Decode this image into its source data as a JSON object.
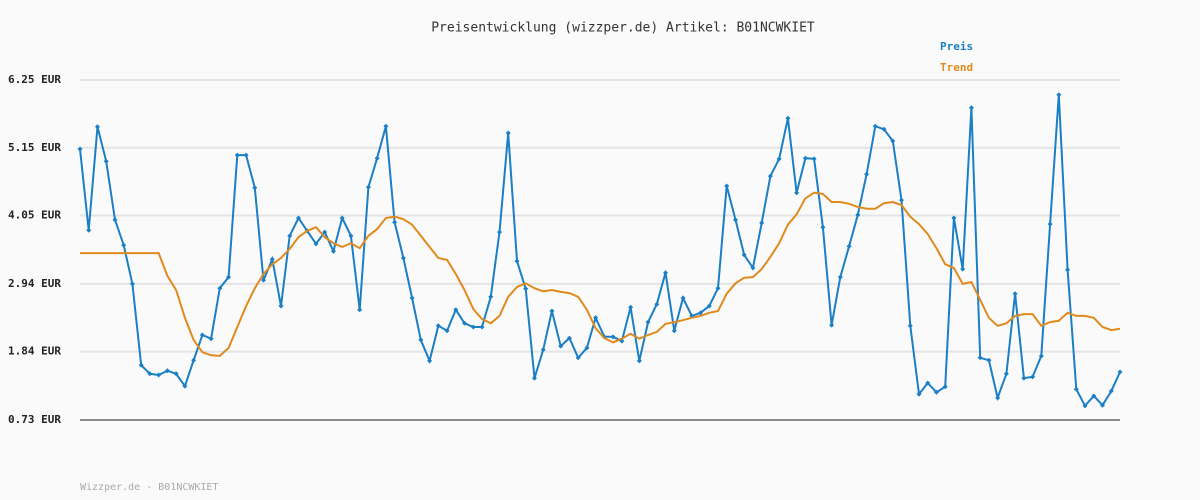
{
  "chart_data": {
    "type": "line",
    "title": "Preisentwicklung (wizzper.de) Artikel: B01NCWKIET",
    "footer": "Wizzper.de - B01NCWKIET",
    "ylim": [
      0.73,
      6.25
    ],
    "yticks": [
      {
        "value": 0.73,
        "label": "0.73 EUR"
      },
      {
        "value": 1.84,
        "label": "1.84 EUR"
      },
      {
        "value": 2.94,
        "label": "2.94 EUR"
      },
      {
        "value": 4.05,
        "label": "4.05 EUR"
      },
      {
        "value": 5.15,
        "label": "5.15 EUR"
      },
      {
        "value": 6.25,
        "label": "6.25 EUR"
      }
    ],
    "grid": true,
    "legend": "top-right",
    "series": [
      {
        "name": "Preis",
        "color": "#1a7fc4",
        "markers": true,
        "values": [
          5.13,
          3.81,
          5.49,
          4.93,
          3.98,
          3.57,
          2.94,
          1.62,
          1.48,
          1.46,
          1.53,
          1.48,
          1.28,
          1.7,
          2.11,
          2.05,
          2.87,
          3.05,
          5.03,
          5.03,
          4.5,
          3.0,
          3.34,
          2.58,
          3.72,
          4.01,
          3.8,
          3.59,
          3.78,
          3.47,
          4.01,
          3.72,
          2.52,
          4.51,
          4.98,
          5.5,
          3.94,
          3.36,
          2.71,
          2.03,
          1.69,
          2.26,
          2.18,
          2.52,
          2.3,
          2.24,
          2.24,
          2.73,
          3.78,
          5.39,
          3.31,
          2.86,
          1.41,
          1.87,
          2.5,
          1.93,
          2.06,
          1.74,
          1.9,
          2.39,
          2.08,
          2.08,
          2.01,
          2.56,
          1.69,
          2.32,
          2.61,
          3.12,
          2.18,
          2.71,
          2.42,
          2.47,
          2.58,
          2.87,
          4.53,
          3.98,
          3.41,
          3.2,
          3.93,
          4.69,
          4.97,
          5.63,
          4.42,
          4.98,
          4.97,
          3.86,
          2.27,
          3.05,
          3.55,
          4.06,
          4.72,
          5.5,
          5.45,
          5.26,
          4.3,
          2.26,
          1.15,
          1.33,
          1.18,
          1.27,
          4.01,
          3.18,
          5.8,
          1.74,
          1.7,
          1.09,
          1.48,
          2.78,
          1.41,
          1.43,
          1.77,
          3.91,
          6.01,
          3.17,
          1.23,
          0.96,
          1.12,
          0.97,
          1.2,
          1.51
        ]
      },
      {
        "name": "Trend",
        "color": "#e08a1e",
        "markers": false,
        "values": [
          3.44,
          3.44,
          3.44,
          3.44,
          3.44,
          3.44,
          3.44,
          3.44,
          3.44,
          3.44,
          3.07,
          2.84,
          2.39,
          2.03,
          1.83,
          1.78,
          1.77,
          1.9,
          2.24,
          2.58,
          2.87,
          3.1,
          3.26,
          3.36,
          3.51,
          3.7,
          3.8,
          3.86,
          3.7,
          3.6,
          3.54,
          3.6,
          3.52,
          3.72,
          3.83,
          4.01,
          4.03,
          3.99,
          3.9,
          3.72,
          3.54,
          3.36,
          3.33,
          3.1,
          2.84,
          2.53,
          2.37,
          2.3,
          2.42,
          2.73,
          2.89,
          2.95,
          2.87,
          2.82,
          2.84,
          2.81,
          2.79,
          2.73,
          2.52,
          2.22,
          2.06,
          1.99,
          2.05,
          2.13,
          2.05,
          2.11,
          2.16,
          2.29,
          2.32,
          2.35,
          2.39,
          2.42,
          2.47,
          2.5,
          2.78,
          2.95,
          3.04,
          3.05,
          3.18,
          3.38,
          3.6,
          3.9,
          4.07,
          4.33,
          4.42,
          4.4,
          4.27,
          4.27,
          4.24,
          4.19,
          4.16,
          4.16,
          4.25,
          4.27,
          4.22,
          4.03,
          3.91,
          3.75,
          3.52,
          3.26,
          3.2,
          2.94,
          2.97,
          2.68,
          2.39,
          2.26,
          2.3,
          2.42,
          2.45,
          2.45,
          2.26,
          2.32,
          2.34,
          2.47,
          2.42,
          2.42,
          2.39,
          2.24,
          2.19,
          2.21
        ]
      }
    ]
  }
}
